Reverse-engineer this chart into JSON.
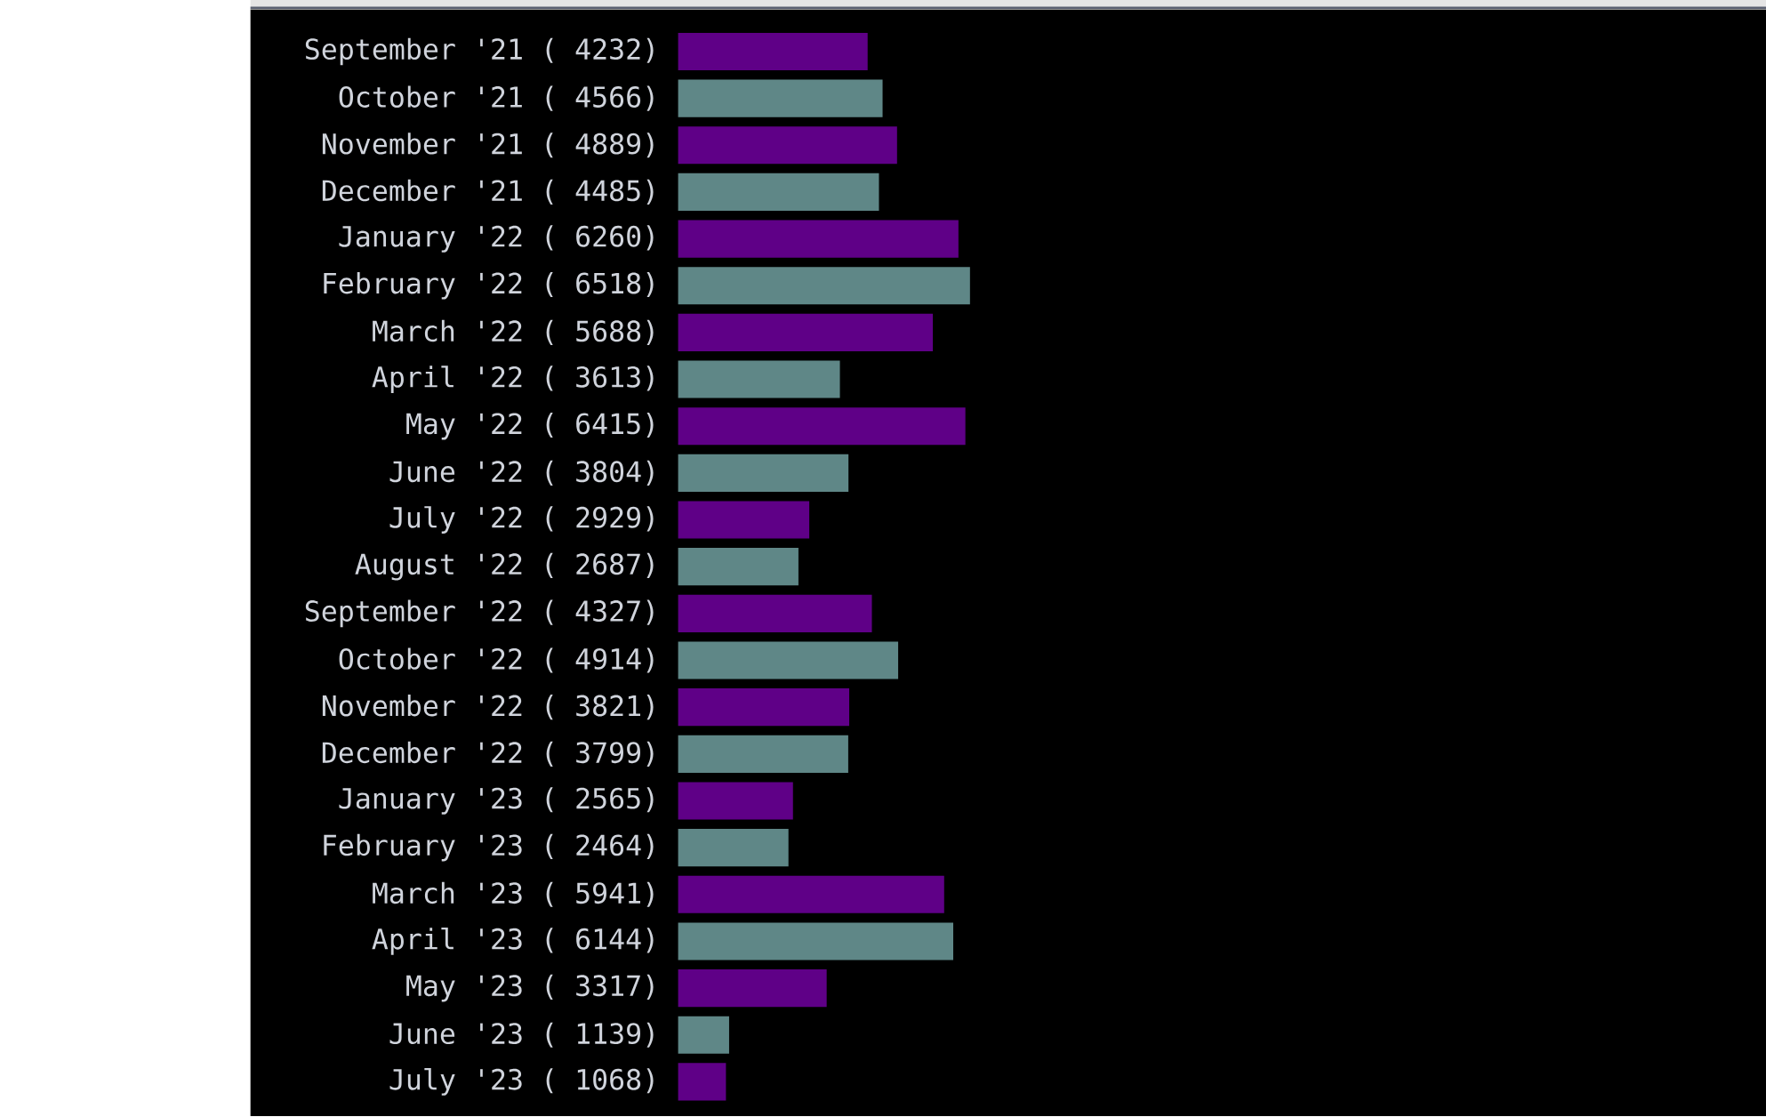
{
  "chart_data": {
    "type": "bar",
    "orientation": "horizontal",
    "value_labels": [
      "( 4232)",
      "( 4566)",
      "( 4889)",
      "( 4485)",
      "( 6260)",
      "( 6518)",
      "( 5688)",
      "( 3613)",
      "( 6415)",
      "( 3804)",
      "( 2929)",
      "( 2687)",
      "( 4327)",
      "( 4914)",
      "( 3821)",
      "( 3799)",
      "( 2565)",
      "( 2464)",
      "( 5941)",
      "( 6144)",
      "( 3317)",
      "( 1139)",
      "( 1068)"
    ],
    "categories": [
      "September '21",
      "October '21",
      "November '21",
      "December '21",
      "January '22",
      "February '22",
      "March '22",
      "April '22",
      "May '22",
      "June '22",
      "July '22",
      "August '22",
      "September '22",
      "October '22",
      "November '22",
      "December '22",
      "January '23",
      "February '23",
      "March '23",
      "April '23",
      "May '23",
      "June '23",
      "July '23"
    ],
    "values": [
      4232,
      4566,
      4889,
      4485,
      6260,
      6518,
      5688,
      3613,
      6415,
      3804,
      2929,
      2687,
      4327,
      4914,
      3821,
      3799,
      2565,
      2464,
      5941,
      6144,
      3317,
      1139,
      1068
    ],
    "colors": [
      "#5f0087",
      "#5f8787",
      "#5f0087",
      "#5f8787",
      "#5f0087",
      "#5f8787",
      "#5f0087",
      "#5f8787",
      "#5f0087",
      "#5f8787",
      "#5f0087",
      "#5f8787",
      "#5f0087",
      "#5f8787",
      "#5f0087",
      "#5f8787",
      "#5f0087",
      "#5f8787",
      "#5f0087",
      "#5f8787",
      "#5f0087",
      "#5f8787",
      "#5f0087"
    ]
  }
}
